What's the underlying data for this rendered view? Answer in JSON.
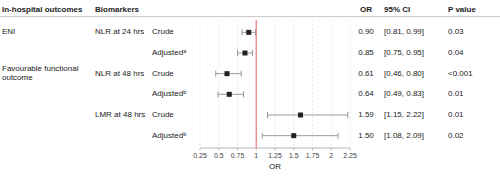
{
  "chart_data": {
    "type": "forest",
    "headers": [
      "In-hospital outcomes",
      "Biomarkers",
      "OR",
      "95% CI",
      "P value"
    ],
    "outcomes": [
      "ENI",
      null,
      "Favourable functional outcome",
      null,
      null,
      null
    ],
    "biomarkers": [
      "NLR at 24 hrs",
      null,
      "NLR at 48 hrs",
      null,
      "LMR at 48 hrs",
      null
    ],
    "categories": [
      "Crude",
      "Adjustedᵃ",
      "Crude",
      "Adjustedᵇ",
      "Crude",
      "Adjustedᵇ"
    ],
    "values": [
      0.9,
      0.85,
      0.61,
      0.64,
      1.59,
      1.5
    ],
    "value_labels": [
      "0.90",
      "0.85",
      "0.61",
      "0.64",
      "1.59",
      "1.50"
    ],
    "ci_low": [
      0.81,
      0.75,
      0.46,
      0.49,
      1.15,
      1.08
    ],
    "ci_high": [
      0.99,
      0.95,
      0.8,
      0.83,
      2.22,
      2.09
    ],
    "ci_labels": [
      "[0.81, 0.99]",
      "[0.75, 0.95]",
      "[0.46, 0.80]",
      "[0.49, 0.83]",
      "[1.15, 2.22]",
      "[1.08, 2.09]"
    ],
    "p_labels": [
      "0.03",
      "0.04",
      "<0.001",
      "0.01",
      "0.01",
      "0.02"
    ],
    "xlabel": "OR",
    "xlim": [
      0.25,
      2.25
    ],
    "xticks": [
      0.25,
      0.5,
      0.75,
      1,
      1.25,
      1.5,
      1.75,
      2,
      2.25
    ],
    "reference_line": {
      "value": 1.0,
      "color": "#f08080"
    },
    "color": "#222222",
    "grid": true
  }
}
